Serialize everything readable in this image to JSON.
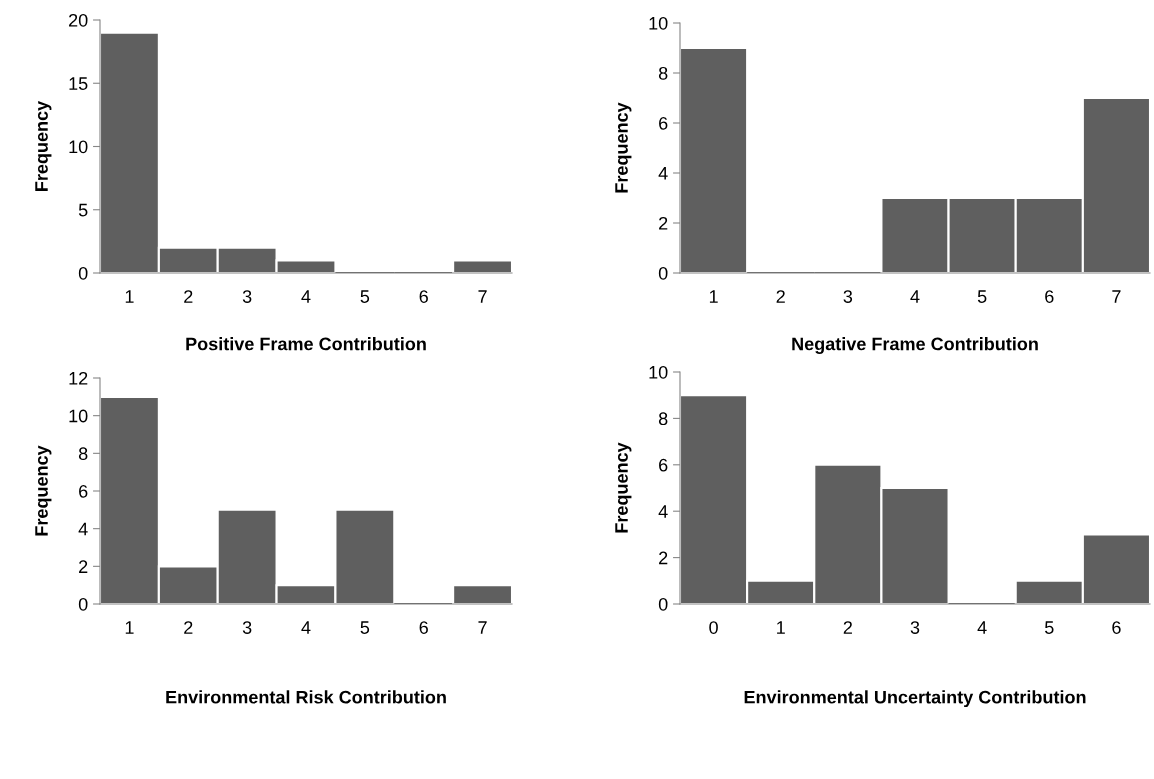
{
  "chart_data": [
    {
      "type": "bar",
      "categories": [
        "1",
        "2",
        "3",
        "4",
        "5",
        "6",
        "7"
      ],
      "values": [
        19,
        2,
        2,
        1,
        0,
        0,
        1
      ],
      "color": "#5f5f5f",
      "ylim": [
        0,
        20
      ],
      "yticks": [
        0,
        5,
        10,
        15,
        20
      ],
      "xlabel": "Positive Frame Contribution",
      "ylabel": "Frequency"
    },
    {
      "type": "bar",
      "categories": [
        "1",
        "2",
        "3",
        "4",
        "5",
        "6",
        "7"
      ],
      "values": [
        9,
        0,
        0,
        3,
        3,
        3,
        7
      ],
      "color": "#5f5f5f",
      "ylim": [
        0,
        10
      ],
      "yticks": [
        0,
        2,
        4,
        6,
        8,
        10
      ],
      "xlabel": "Negative Frame Contribution",
      "ylabel": "Frequency"
    },
    {
      "type": "bar",
      "categories": [
        "1",
        "2",
        "3",
        "4",
        "5",
        "6",
        "7"
      ],
      "values": [
        11,
        2,
        5,
        1,
        5,
        0,
        1
      ],
      "color": "#5f5f5f",
      "ylim": [
        0,
        12
      ],
      "yticks": [
        0,
        2,
        4,
        6,
        8,
        10,
        12
      ],
      "xlabel": "Environmental Risk Contribution",
      "ylabel": "Frequency"
    },
    {
      "type": "bar",
      "categories": [
        "0",
        "1",
        "2",
        "3",
        "4",
        "5",
        "6"
      ],
      "values": [
        9,
        1,
        6,
        5,
        0,
        1,
        3
      ],
      "color": "#5f5f5f",
      "ylim": [
        0,
        10
      ],
      "yticks": [
        0,
        2,
        4,
        6,
        8,
        10
      ],
      "xlabel": "Environmental Uncertainty Contribution",
      "ylabel": "Frequency"
    }
  ]
}
